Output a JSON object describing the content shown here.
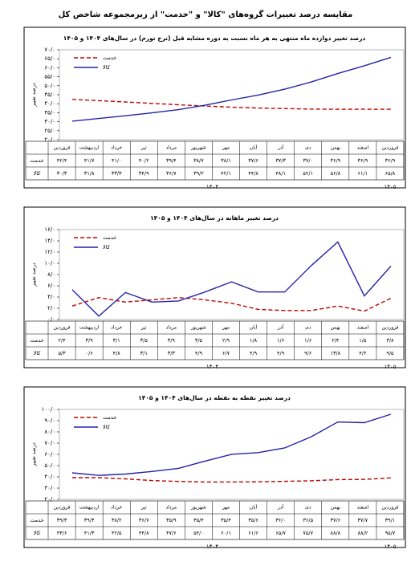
{
  "header": {
    "title": "مقایسه درصد تغییرات گروه‌های \"کالا\" و \"خدمت\" از زیرمجموعه شاخص کل"
  },
  "chart_data": [
    {
      "type": "line",
      "title": "درصد تغییر دوازده ماه منتهی به هر ماه نسبت به دوره مشابه قبل (نرخ تورم) در سال‌های ۱۴۰۴ و ۱۴۰۵",
      "y_label": "درصد تغییر",
      "categories": [
        "فروردین",
        "اردیبهشت",
        "خرداد",
        "تیر",
        "مرداد",
        "شهریور",
        "مهر",
        "آبان",
        "آذر",
        "دی",
        "بهمن",
        "اسفند",
        "فروردین"
      ],
      "years": [
        "۱۴۰۴",
        "۱۴۰۵"
      ],
      "series": [
        {
          "name": "خدمت",
          "color": "#c00000",
          "line_style": "dashed",
          "values": [
            42.4,
            41.7,
            41.0,
            40.2,
            39.4,
            38.7,
            38.1,
            37.6,
            37.3,
            37.0,
            36.9,
            36.9,
            36.9
          ],
          "value_labels": [
            "۴۲/۴",
            "۴۱/۷",
            "۴۱/۰",
            "۴۰/۲",
            "۳۹/۴",
            "۳۸/۷",
            "۳۸/۱",
            "۳۷/۶",
            "۳۷/۳",
            "۳۷/۰",
            "۳۶/۹",
            "۳۶/۹",
            "۳۶/۹"
          ]
        },
        {
          "name": "کالا",
          "color": "#2424a8",
          "line_style": "solid",
          "values": [
            30.3,
            31.8,
            33.3,
            34.9,
            36.7,
            39.2,
            42.1,
            44.8,
            48.1,
            52.1,
            56.8,
            61.1,
            65.8
          ],
          "value_labels": [
            "۳۰/۳",
            "۳۱/۸",
            "۳۳/۳",
            "۳۴/۹",
            "۳۶/۷",
            "۳۹/۲",
            "۴۲/۱",
            "۴۴/۸",
            "۴۸/۱",
            "۵۲/۱",
            "۵۶/۸",
            "۶۱/۱",
            "۶۵/۸"
          ]
        }
      ],
      "ylim": [
        20,
        70
      ],
      "yticks": [
        {
          "value": 20,
          "label": "۲۰/۰"
        },
        {
          "value": 25,
          "label": "۲۵/۰"
        },
        {
          "value": 30,
          "label": "۳۰/۰"
        },
        {
          "value": 35,
          "label": "۳۵/۰"
        },
        {
          "value": 40,
          "label": "۴۰/۰"
        },
        {
          "value": 45,
          "label": "۴۵/۰"
        },
        {
          "value": 50,
          "label": "۵۰/۰"
        },
        {
          "value": 55,
          "label": "۵۵/۰"
        },
        {
          "value": 60,
          "label": "۶۰/۰"
        },
        {
          "value": 65,
          "label": "۶۵/۰"
        },
        {
          "value": 70,
          "label": "۷۰/۰"
        }
      ]
    },
    {
      "type": "line",
      "title": "درصد تغییر ماهانه در سال‌های ۱۴۰۴ و ۱۴۰۵",
      "y_label": "درصد تغییر",
      "categories": [
        "فروردین",
        "اردیبهشت",
        "خرداد",
        "تیر",
        "مرداد",
        "شهریور",
        "مهر",
        "آبان",
        "آذر",
        "دی",
        "بهمن",
        "اسفند",
        "فروردین"
      ],
      "years": [
        "۱۴۰۴",
        "۱۴۰۵"
      ],
      "series": [
        {
          "name": "خدمت",
          "color": "#c00000",
          "line_style": "dashed",
          "values": [
            2.4,
            3.9,
            3.1,
            3.5,
            3.9,
            3.5,
            2.9,
            1.8,
            1.6,
            1.6,
            2.4,
            1.5,
            3.8
          ],
          "value_labels": [
            "۲/۴",
            "۳/۹",
            "۳/۱",
            "۳/۵",
            "۳/۹",
            "۳/۵",
            "۲/۹",
            "۱/۸",
            "۱/۶",
            "۱/۶",
            "۲/۴",
            "۱/۵",
            "۳/۸"
          ]
        },
        {
          "name": "کالا",
          "color": "#2424a8",
          "line_style": "solid",
          "values": [
            5.3,
            0.6,
            4.8,
            3.1,
            3.3,
            4.9,
            6.7,
            4.9,
            4.9,
            9.6,
            13.8,
            4.2,
            9.5
          ],
          "value_labels": [
            "۵/۳",
            "۰/۶",
            "۴/۸",
            "۳/۱",
            "۳/۳",
            "۴/۹",
            "۶/۷",
            "۴/۹",
            "۴/۹",
            "۹/۶",
            "۱۳/۸",
            "۴/۲",
            "۹/۵"
          ]
        }
      ],
      "ylim": [
        0,
        16
      ],
      "yticks": [
        {
          "value": 0,
          "label": "۰/۰"
        },
        {
          "value": 2,
          "label": "۲/۰"
        },
        {
          "value": 4,
          "label": "۴/۰"
        },
        {
          "value": 6,
          "label": "۶/۰"
        },
        {
          "value": 8,
          "label": "۸/۰"
        },
        {
          "value": 10,
          "label": "۱۰/۰"
        },
        {
          "value": 12,
          "label": "۱۲/۰"
        },
        {
          "value": 14,
          "label": "۱۴/۰"
        },
        {
          "value": 16,
          "label": "۱۶/۰"
        }
      ]
    },
    {
      "type": "line",
      "title": "درصد تغییر نقطه به نقطه در سال‌های ۱۴۰۴ و ۱۴۰۵",
      "y_label": "درصد تغییر",
      "categories": [
        "فروردین",
        "اردیبهشت",
        "خرداد",
        "تیر",
        "مرداد",
        "شهریور",
        "مهر",
        "آبان",
        "آذر",
        "دی",
        "بهمن",
        "اسفند",
        "فروردین"
      ],
      "years": [
        "۱۴۰۴",
        "۱۴۰۵"
      ],
      "series": [
        {
          "name": "خدمت",
          "color": "#c00000",
          "line_style": "dashed",
          "values": [
            39.3,
            39.3,
            38.2,
            36.7,
            35.9,
            35.4,
            35.4,
            35.6,
            36.0,
            36.5,
            37.6,
            37.7,
            39.1
          ],
          "value_labels": [
            "۳۹/۳",
            "۳۹/۳",
            "۳۸/۲",
            "۳۶/۷",
            "۳۵/۹",
            "۳۵/۴",
            "۳۵/۴",
            "۳۵/۶",
            "۳۶/۰",
            "۳۶/۵",
            "۳۷/۶",
            "۳۷/۷",
            "۳۹/۱"
          ]
        },
        {
          "name": "کالا",
          "color": "#2424a8",
          "line_style": "solid",
          "values": [
            43.6,
            41.3,
            42.5,
            44.8,
            47.6,
            54.0,
            60.1,
            61.6,
            65.7,
            75.7,
            88.8,
            88.2,
            95.7
          ],
          "value_labels": [
            "۴۳/۶",
            "۴۱/۳",
            "۴۲/۵",
            "۴۴/۸",
            "۴۷/۶",
            "۵۴/۰",
            "۶۰/۱",
            "۶۱/۶",
            "۶۵/۷",
            "۷۵/۷",
            "۸۸/۸",
            "۸۸/۲",
            "۹۵/۷"
          ]
        }
      ],
      "ylim": [
        20,
        100
      ],
      "yticks": [
        {
          "value": 20,
          "label": "۲۰/۰"
        },
        {
          "value": 30,
          "label": "۳۰/۰"
        },
        {
          "value": 40,
          "label": "۴۰/۰"
        },
        {
          "value": 50,
          "label": "۵۰/۰"
        },
        {
          "value": 60,
          "label": "۶۰/۰"
        },
        {
          "value": 70,
          "label": "۷۰/۰"
        },
        {
          "value": 80,
          "label": "۸۰/۰"
        },
        {
          "value": 90,
          "label": "۹۰/۰"
        },
        {
          "value": 100,
          "label": "۱۰۰/۰"
        }
      ]
    }
  ]
}
